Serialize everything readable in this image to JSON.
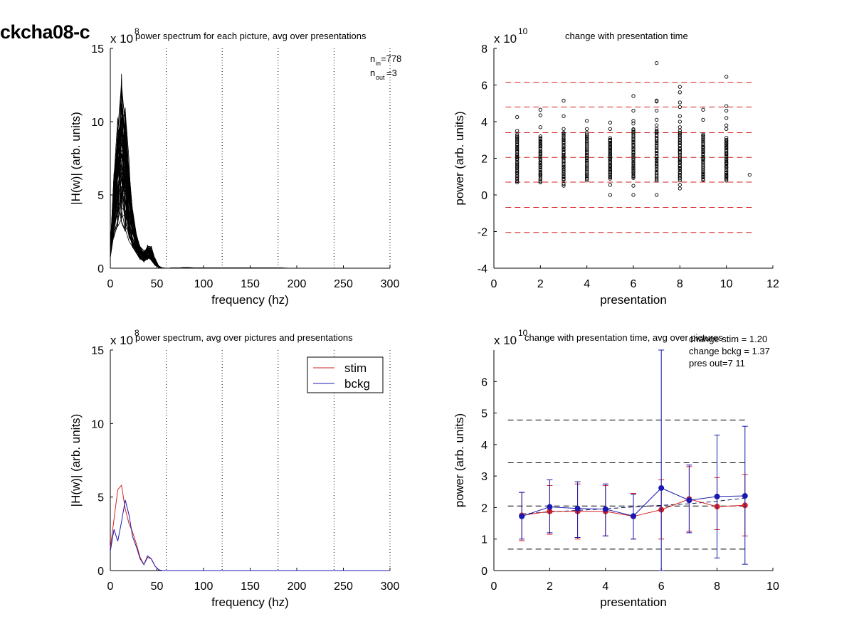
{
  "figure_title": "ckcha08-c",
  "chart_data": [
    {
      "id": "p1",
      "type": "line",
      "title": "power spectrum for each picture, avg over presentations",
      "xlabel": "frequency (hz)",
      "ylabel": "|H(w)| (arb. units)",
      "exponent_label": "x 10",
      "exponent": "8",
      "xlim": [
        0,
        300
      ],
      "ylim": [
        0,
        15
      ],
      "xticks": [
        "0",
        "50",
        "100",
        "150",
        "200",
        "250",
        "300"
      ],
      "yticks": [
        "0",
        "5",
        "10",
        "15"
      ],
      "vlines": [
        60,
        120,
        180,
        240,
        300
      ],
      "annotations": [
        {
          "base": "n",
          "sub": "in",
          "text": "=778"
        },
        {
          "base": "n",
          "sub": "out",
          "text": "=3"
        }
      ],
      "x": [
        0,
        4,
        8,
        12,
        16,
        20,
        24,
        28,
        32,
        36,
        40,
        44,
        48,
        52,
        56,
        60,
        70,
        80,
        100,
        150,
        200,
        250,
        300
      ],
      "envelope_low": [
        0.7,
        2.0,
        2.8,
        3.0,
        2.5,
        1.8,
        1.4,
        1.0,
        0.6,
        0.4,
        0.6,
        0.5,
        0.2,
        0.05,
        0,
        0,
        0,
        0,
        0,
        0,
        0,
        0,
        0
      ],
      "envelope_high": [
        1.5,
        6.5,
        10.5,
        13.4,
        11.2,
        7.5,
        4.0,
        2.3,
        1.5,
        1.2,
        1.6,
        1.5,
        0.7,
        0.15,
        0.02,
        0,
        0.02,
        0.05,
        0.02,
        0.03,
        0,
        0,
        0
      ]
    },
    {
      "id": "p2",
      "type": "scatter",
      "title": "change with presentation time",
      "xlabel": "presentation",
      "ylabel": "power (arb. units)",
      "exponent_label": "x 10",
      "exponent": "10",
      "xlim": [
        0,
        12
      ],
      "ylim": [
        -4,
        8
      ],
      "xticks": [
        "0",
        "2",
        "4",
        "6",
        "8",
        "10",
        "12"
      ],
      "yticks": [
        "-4",
        "-2",
        "0",
        "2",
        "4",
        "6",
        "8"
      ],
      "hlines": [
        6.15,
        4.8,
        3.4,
        2.05,
        0.7,
        -0.68,
        -2.05
      ],
      "hline_color": "#d62020",
      "dense_ranges": [
        [
          1,
          0.7,
          3.3
        ],
        [
          2,
          0.7,
          3.2
        ],
        [
          3,
          0.8,
          3.4
        ],
        [
          4,
          0.8,
          3.4
        ],
        [
          5,
          0.9,
          3.1
        ],
        [
          6,
          0.9,
          3.6
        ],
        [
          7,
          0.8,
          3.6
        ],
        [
          8,
          0.8,
          3.5
        ],
        [
          9,
          0.8,
          3.3
        ],
        [
          10,
          0.8,
          3.1
        ]
      ],
      "outliers": [
        [
          1,
          4.25
        ],
        [
          1,
          3.5
        ],
        [
          2,
          4.65
        ],
        [
          2,
          4.35
        ],
        [
          2,
          3.7
        ],
        [
          3,
          5.15
        ],
        [
          3,
          4.3
        ],
        [
          3,
          3.6
        ],
        [
          3,
          0.5
        ],
        [
          3,
          0.6
        ],
        [
          4,
          4.05
        ],
        [
          4,
          3.6
        ],
        [
          5,
          3.95
        ],
        [
          5,
          3.6
        ],
        [
          5,
          0.55
        ],
        [
          5,
          0.0
        ],
        [
          6,
          5.4
        ],
        [
          6,
          4.6
        ],
        [
          6,
          4.05
        ],
        [
          6,
          3.9
        ],
        [
          6,
          0.5
        ],
        [
          6,
          0.0
        ],
        [
          7,
          7.2
        ],
        [
          7,
          5.15
        ],
        [
          7,
          5.1
        ],
        [
          7,
          4.6
        ],
        [
          7,
          4.1
        ],
        [
          7,
          3.8
        ],
        [
          7,
          0.0
        ],
        [
          8,
          5.9
        ],
        [
          8,
          5.6
        ],
        [
          8,
          5.05
        ],
        [
          8,
          4.8
        ],
        [
          8,
          4.3
        ],
        [
          8,
          4.0
        ],
        [
          8,
          3.7
        ],
        [
          8,
          0.35
        ],
        [
          8,
          0.55
        ],
        [
          9,
          4.65
        ],
        [
          9,
          4.1
        ],
        [
          10,
          6.45
        ],
        [
          10,
          4.85
        ],
        [
          10,
          4.6
        ],
        [
          10,
          4.2
        ],
        [
          10,
          3.8
        ],
        [
          10,
          3.6
        ],
        [
          11,
          1.1
        ]
      ]
    },
    {
      "id": "p3",
      "type": "line",
      "title": "power spectrum, avg over pictures and presentations",
      "xlabel": "frequency (hz)",
      "ylabel": "|H(w)| (arb. units)",
      "exponent_label": "x 10",
      "exponent": "8",
      "xlim": [
        0,
        300
      ],
      "ylim": [
        0,
        15
      ],
      "xticks": [
        "0",
        "50",
        "100",
        "150",
        "200",
        "250",
        "300"
      ],
      "yticks": [
        "0",
        "5",
        "10",
        "15"
      ],
      "vlines": [
        60,
        120,
        180,
        240,
        300
      ],
      "legend": "top-right",
      "x": [
        0,
        4,
        8,
        12,
        16,
        20,
        24,
        28,
        32,
        36,
        40,
        44,
        48,
        52,
        56,
        60,
        100,
        200,
        300
      ],
      "series": [
        {
          "name": "stim",
          "color": "#d62020",
          "values": [
            1.5,
            3.5,
            5.5,
            5.8,
            4.2,
            3.2,
            2.6,
            1.8,
            0.9,
            0.4,
            0.9,
            0.8,
            0.3,
            0.05,
            0,
            0,
            0,
            0,
            0
          ]
        },
        {
          "name": "bckg",
          "color": "#1a1ab0",
          "values": [
            1.3,
            2.8,
            2.0,
            3.3,
            4.8,
            3.8,
            2.3,
            1.6,
            0.8,
            0.4,
            1.0,
            0.8,
            0.3,
            0.05,
            0,
            0,
            0,
            0,
            0
          ]
        }
      ]
    },
    {
      "id": "p4",
      "type": "line",
      "title": "change with presentation time, avg over pictures",
      "xlabel": "presentation",
      "ylabel": "power (arb. units)",
      "exponent_label": "x 10",
      "exponent": "10",
      "xlim": [
        0,
        10
      ],
      "ylim": [
        0,
        7
      ],
      "xticks": [
        "0",
        "2",
        "4",
        "6",
        "8",
        "10"
      ],
      "yticks": [
        "0",
        "1",
        "2",
        "3",
        "4",
        "5",
        "6"
      ],
      "hlines": [
        4.78,
        3.42,
        2.05,
        0.68
      ],
      "hline_color": "#000000",
      "annotations": [
        "change stim = 1.20",
        "change bckg = 1.37",
        "pres out=7 11"
      ],
      "x": [
        1,
        2,
        3,
        4,
        5,
        6,
        7,
        8,
        9
      ],
      "series": [
        {
          "name": "stim",
          "color": "#d62020",
          "values": [
            1.75,
            1.88,
            1.88,
            1.88,
            1.72,
            1.93,
            2.27,
            2.03,
            2.07
          ],
          "err_low": [
            0.95,
            1.15,
            1.0,
            1.1,
            1.0,
            1.0,
            1.25,
            1.3,
            1.1
          ],
          "err_high": [
            2.48,
            2.7,
            2.75,
            2.7,
            2.45,
            2.88,
            3.3,
            2.95,
            3.05
          ]
        },
        {
          "name": "bckg",
          "color": "#1a1ab0",
          "values": [
            1.72,
            2.02,
            1.97,
            1.95,
            1.73,
            2.62,
            2.23,
            2.35,
            2.37
          ],
          "err_low": [
            1.0,
            1.2,
            1.05,
            1.1,
            1.0,
            0.0,
            1.2,
            0.4,
            0.2
          ],
          "err_high": [
            2.48,
            2.88,
            2.82,
            2.75,
            2.42,
            7.0,
            3.35,
            4.3,
            4.58
          ]
        }
      ],
      "trend": {
        "color": "#0a1a60",
        "values": [
          1.8,
          1.86,
          1.91,
          1.96,
          2.02,
          2.07,
          2.12,
          2.2,
          2.3
        ]
      }
    }
  ]
}
